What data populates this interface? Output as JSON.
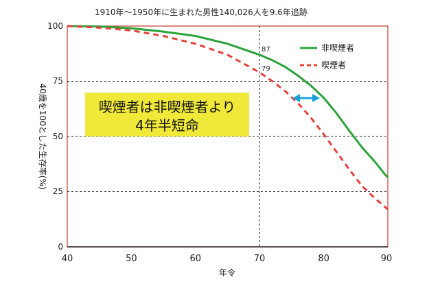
{
  "chart_data": {
    "type": "line",
    "title": "1910年〜1950年に生まれた男性140,026人を9.6年追跡",
    "xlabel": "年令",
    "ylabel": "40歳を100とした生存率(%)",
    "xlim": [
      40,
      90
    ],
    "ylim": [
      0,
      100
    ],
    "xticks": [
      40,
      50,
      60,
      70,
      80,
      90
    ],
    "yticks": [
      0,
      25,
      50,
      75,
      100
    ],
    "grid": "horizontal dashed at 25, 50, 75",
    "legend_position": "top-right",
    "series": [
      {
        "name": "非喫煙者",
        "color": "#2aa33a",
        "style": "solid",
        "x": [
          40,
          45,
          50,
          55,
          60,
          65,
          70,
          72,
          74,
          76,
          78,
          80,
          82,
          84,
          86,
          88,
          89.5,
          90
        ],
        "y": [
          100,
          99.8,
          99,
          97.5,
          95.5,
          92,
          87,
          84.5,
          81.5,
          77.5,
          73,
          67.5,
          60.5,
          52.5,
          45,
          38.5,
          33,
          31.5
        ]
      },
      {
        "name": "喫煙者",
        "color": "#e8413a",
        "style": "dashed",
        "x": [
          40,
          45,
          50,
          55,
          60,
          65,
          70,
          72,
          74,
          76,
          78,
          80,
          82,
          84,
          86,
          88,
          90
        ],
        "y": [
          100,
          99.3,
          98,
          95.5,
          92,
          87,
          79,
          75,
          70.5,
          65,
          58.5,
          51,
          43,
          35,
          27.5,
          22,
          17
        ]
      }
    ],
    "annotations": [
      {
        "text": "87"
      },
      {
        "text": "79"
      },
      {
        "text": "喫煙者は非喫煙者より"
      },
      {
        "text": "4年半短命"
      }
    ]
  }
}
